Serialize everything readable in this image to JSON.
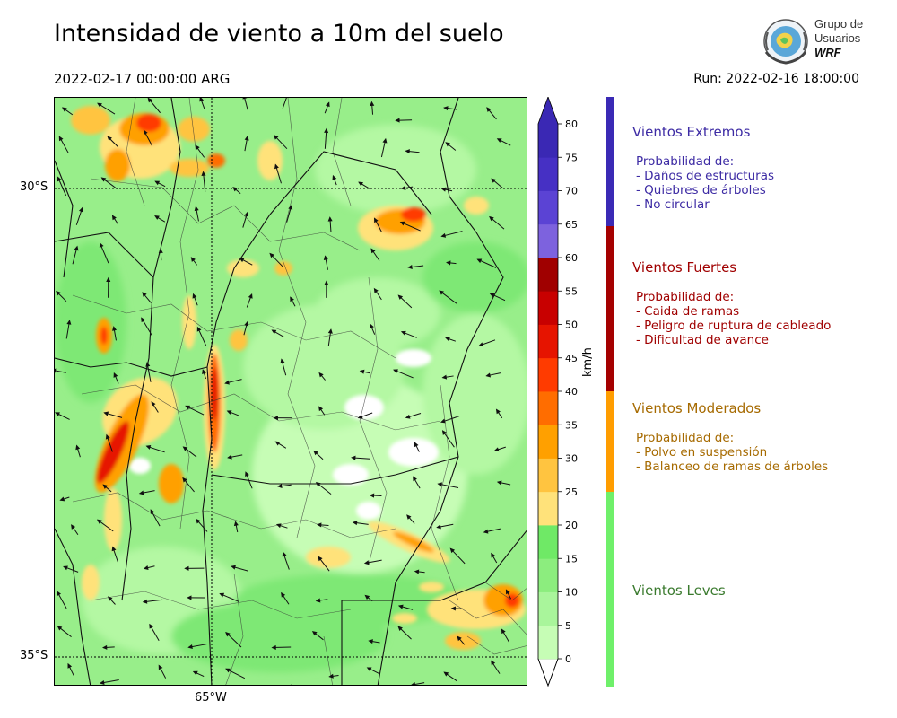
{
  "title": "Intensidad de viento a 10m del suelo",
  "valid_time": "2022-02-17 00:00:00 ARG",
  "run_time": "Run: 2022-02-16 18:00:00",
  "logo": {
    "line1": "Grupo de",
    "line2": "Usuarios",
    "line3": "WRF",
    "icon": "globe-seal-icon"
  },
  "map": {
    "lat_labels": [
      "30°S",
      "35°S"
    ],
    "lon_labels": [
      "65°W"
    ]
  },
  "colorbar": {
    "unit": "km/h",
    "ticks": [
      "0",
      "5",
      "10",
      "15",
      "20",
      "25",
      "30",
      "35",
      "40",
      "45",
      "50",
      "55",
      "60",
      "65",
      "70",
      "75",
      "80"
    ],
    "colors": [
      "#ffffff",
      "#c6fdb5",
      "#a9f59b",
      "#8ced7e",
      "#6fe966",
      "#ffe27a",
      "#ffc440",
      "#ffa000",
      "#ff6d00",
      "#ff3b00",
      "#e61400",
      "#c80000",
      "#a00000",
      "#7d62de",
      "#5b43d4",
      "#4630c4",
      "#3a28b4"
    ]
  },
  "categories": [
    {
      "name": "Vientos Extremos",
      "color": "#3d2ba4",
      "bar_color": "#3a2ab5",
      "range_kmh": [
        65,
        80
      ],
      "prob_title": "Probabilidad de:",
      "items": [
        "- Daños de estructuras",
        "- Quiebres de árboles",
        "- No circular"
      ]
    },
    {
      "name": "Vientos Fuertes",
      "color": "#a00000",
      "bar_color": "#a50000",
      "range_kmh": [
        40,
        65
      ],
      "prob_title": "Probabilidad de:",
      "items": [
        "- Caida de ramas",
        "- Peligro de ruptura de cableado",
        "- Dificultad de avance"
      ]
    },
    {
      "name": "Vientos Moderados",
      "color": "#a66a00",
      "bar_color": "#ff9d00",
      "range_kmh": [
        25,
        40
      ],
      "prob_title": "Probabilidad de:",
      "items": [
        "- Polvo en suspensión",
        "- Balanceo de ramas de árboles"
      ]
    },
    {
      "name": "Vientos Leves",
      "color": "#3a7a2e",
      "bar_color": "#6ff06a",
      "range_kmh": [
        0,
        25
      ],
      "prob_title": "",
      "items": []
    }
  ]
}
